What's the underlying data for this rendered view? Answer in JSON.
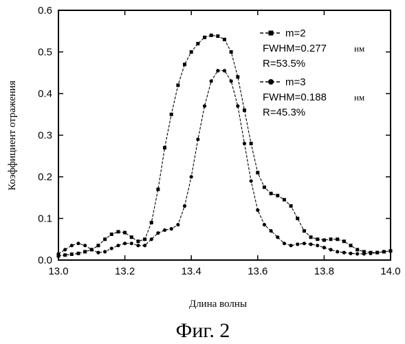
{
  "chart_data": {
    "type": "line",
    "xlabel": "Длина волны",
    "ylabel": "Коэффициент отражения",
    "xlim": [
      13.0,
      14.0
    ],
    "ylim": [
      0.0,
      0.6
    ],
    "x_ticks": [
      "13.0",
      "13.2",
      "13.4",
      "13.6",
      "13.8",
      "14.0"
    ],
    "y_ticks": [
      "0.0",
      "0.1",
      "0.2",
      "0.3",
      "0.4",
      "0.5",
      "0.6"
    ],
    "grid": false,
    "legend_position": "top-right",
    "caption": "Фиг. 2",
    "series": [
      {
        "name": "m=2",
        "marker": "square",
        "fwhm": "FWHM=0.277",
        "unit": "нм",
        "r": "R=53.5%",
        "x": [
          13.0,
          13.02,
          13.04,
          13.06,
          13.08,
          13.1,
          13.12,
          13.14,
          13.16,
          13.18,
          13.2,
          13.22,
          13.24,
          13.26,
          13.28,
          13.3,
          13.32,
          13.34,
          13.36,
          13.38,
          13.4,
          13.42,
          13.44,
          13.46,
          13.48,
          13.5,
          13.52,
          13.54,
          13.56,
          13.58,
          13.6,
          13.62,
          13.64,
          13.66,
          13.68,
          13.7,
          13.72,
          13.74,
          13.76,
          13.78,
          13.8,
          13.82,
          13.84,
          13.86,
          13.88,
          13.9,
          13.92,
          13.94,
          13.96,
          13.98,
          14.0
        ],
        "y": [
          0.01,
          0.012,
          0.014,
          0.016,
          0.02,
          0.025,
          0.035,
          0.05,
          0.062,
          0.068,
          0.066,
          0.055,
          0.045,
          0.05,
          0.09,
          0.17,
          0.27,
          0.35,
          0.42,
          0.47,
          0.5,
          0.52,
          0.535,
          0.54,
          0.538,
          0.53,
          0.5,
          0.44,
          0.36,
          0.28,
          0.21,
          0.175,
          0.16,
          0.155,
          0.145,
          0.13,
          0.1,
          0.07,
          0.055,
          0.05,
          0.048,
          0.05,
          0.05,
          0.045,
          0.035,
          0.025,
          0.02,
          0.018,
          0.018,
          0.02,
          0.022
        ]
      },
      {
        "name": "m=3",
        "marker": "circle",
        "fwhm": "FWHM=0.188",
        "unit": "нм",
        "r": "R=45.3%",
        "x": [
          13.0,
          13.02,
          13.04,
          13.06,
          13.08,
          13.1,
          13.12,
          13.14,
          13.16,
          13.18,
          13.2,
          13.22,
          13.24,
          13.26,
          13.28,
          13.3,
          13.32,
          13.34,
          13.36,
          13.38,
          13.4,
          13.42,
          13.44,
          13.46,
          13.48,
          13.5,
          13.52,
          13.54,
          13.56,
          13.58,
          13.6,
          13.62,
          13.64,
          13.66,
          13.68,
          13.7,
          13.72,
          13.74,
          13.76,
          13.78,
          13.8,
          13.82,
          13.84,
          13.86,
          13.88,
          13.9,
          13.92,
          13.94,
          13.96,
          13.98,
          14.0
        ],
        "y": [
          0.015,
          0.025,
          0.035,
          0.04,
          0.035,
          0.025,
          0.018,
          0.02,
          0.028,
          0.035,
          0.04,
          0.04,
          0.035,
          0.035,
          0.05,
          0.065,
          0.072,
          0.075,
          0.085,
          0.13,
          0.2,
          0.29,
          0.37,
          0.43,
          0.455,
          0.455,
          0.43,
          0.37,
          0.28,
          0.19,
          0.12,
          0.085,
          0.07,
          0.055,
          0.04,
          0.035,
          0.038,
          0.04,
          0.038,
          0.035,
          0.03,
          0.025,
          0.02,
          0.018,
          0.016,
          0.015,
          0.015,
          0.016,
          0.018,
          0.02,
          0.022
        ]
      }
    ]
  }
}
